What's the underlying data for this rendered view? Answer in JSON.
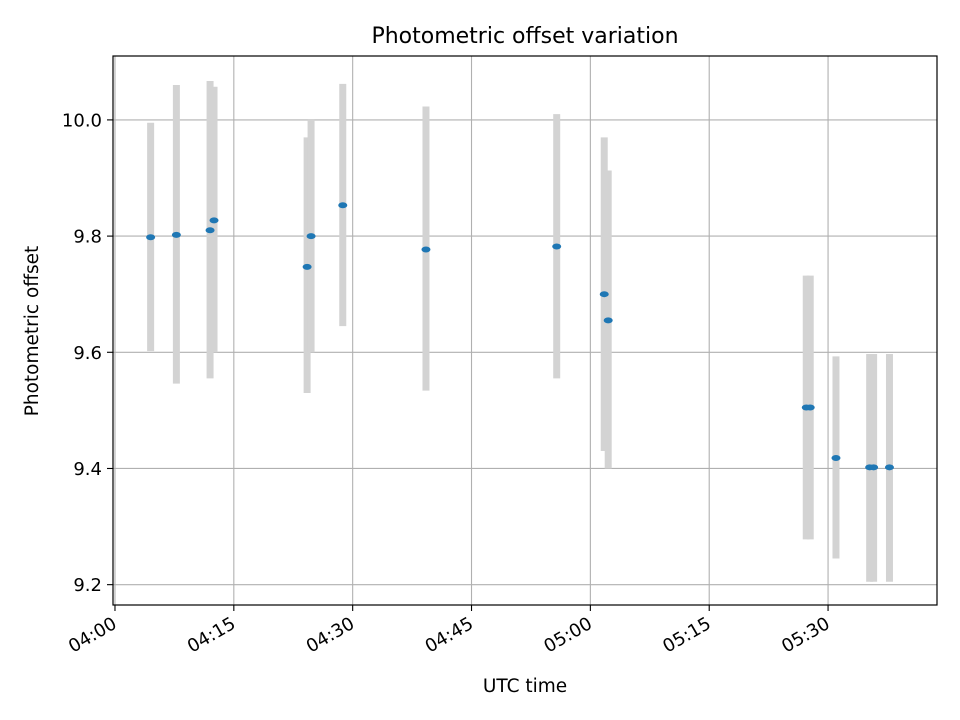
{
  "chart_data": {
    "type": "scatter",
    "title": "Photometric offset variation",
    "xlabel": "UTC time",
    "ylabel": "Photometric offset",
    "x_ticks": [
      "04:00",
      "04:15",
      "04:30",
      "04:45",
      "05:00",
      "05:15",
      "05:30"
    ],
    "y_ticks": [
      "9.2",
      "9.4",
      "9.6",
      "9.8",
      "10.0"
    ],
    "xlim": [
      "03:59:45",
      "05:43:45"
    ],
    "ylim": [
      9.165,
      10.11
    ],
    "grid": true,
    "colors": {
      "point": "#1f77b4",
      "errorbar": "#d3d3d3",
      "grid": "#b0b0b0"
    },
    "points": [
      {
        "x": "04:04:30",
        "y": 9.798,
        "low": 9.602,
        "high": 9.995
      },
      {
        "x": "04:07:45",
        "y": 9.802,
        "low": 9.546,
        "high": 10.06
      },
      {
        "x": "04:12:00",
        "y": 9.81,
        "low": 9.555,
        "high": 10.067
      },
      {
        "x": "04:12:30",
        "y": 9.827,
        "low": 9.6,
        "high": 10.057
      },
      {
        "x": "04:24:15",
        "y": 9.747,
        "low": 9.53,
        "high": 9.97
      },
      {
        "x": "04:24:45",
        "y": 9.8,
        "low": 9.6,
        "high": 10.0
      },
      {
        "x": "04:28:45",
        "y": 9.853,
        "low": 9.645,
        "high": 10.062
      },
      {
        "x": "04:39:15",
        "y": 9.777,
        "low": 9.534,
        "high": 10.023
      },
      {
        "x": "04:55:45",
        "y": 9.782,
        "low": 9.555,
        "high": 10.01
      },
      {
        "x": "05:01:45",
        "y": 9.7,
        "low": 9.43,
        "high": 9.97
      },
      {
        "x": "05:02:15",
        "y": 9.655,
        "low": 9.4,
        "high": 9.913
      },
      {
        "x": "05:27:15",
        "y": 9.505,
        "low": 9.278,
        "high": 9.732
      },
      {
        "x": "05:27:45",
        "y": 9.505,
        "low": 9.278,
        "high": 9.732
      },
      {
        "x": "05:31:00",
        "y": 9.418,
        "low": 9.245,
        "high": 9.593
      },
      {
        "x": "05:35:15",
        "y": 9.402,
        "low": 9.205,
        "high": 9.597
      },
      {
        "x": "05:35:45",
        "y": 9.402,
        "low": 9.205,
        "high": 9.597
      },
      {
        "x": "05:37:45",
        "y": 9.402,
        "low": 9.205,
        "high": 9.597
      }
    ]
  }
}
